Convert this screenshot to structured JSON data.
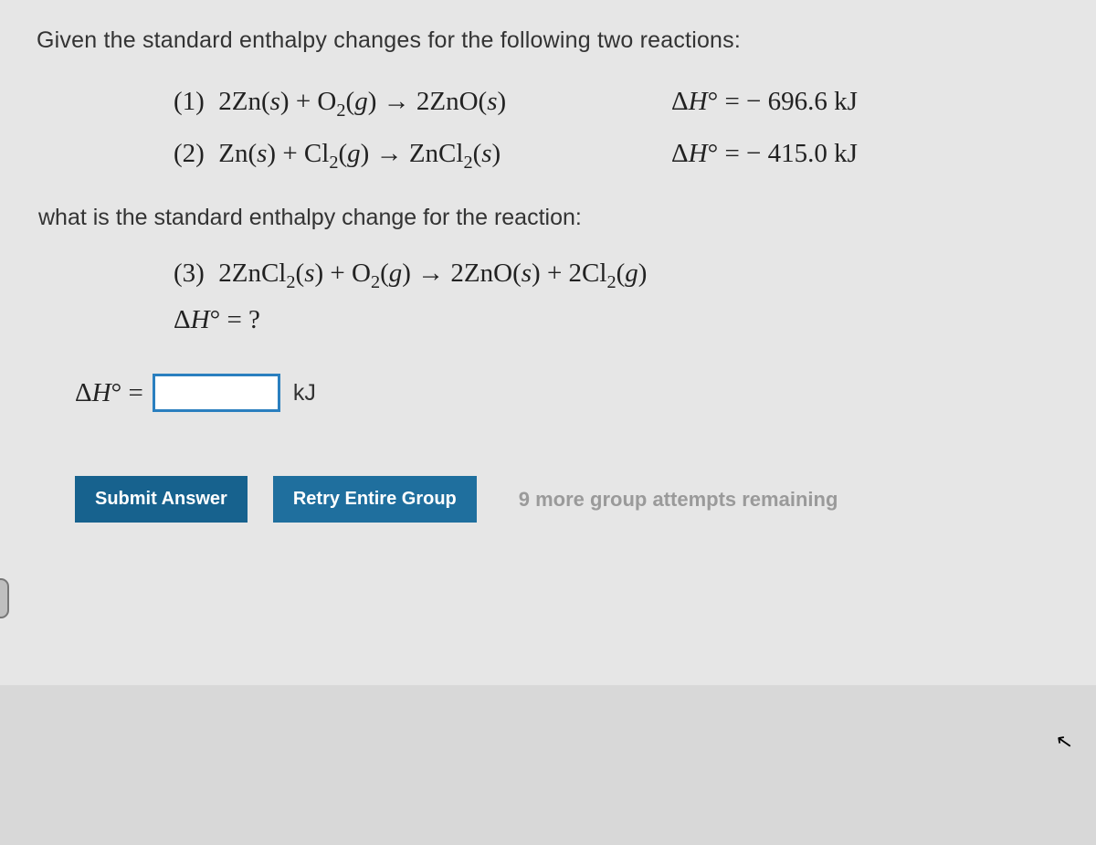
{
  "intro": "Given the standard enthalpy changes for the following two reactions:",
  "eq1": {
    "num": "(1)",
    "left": "2Zn(s) + O₂(g) → 2ZnO(s)",
    "right": "ΔH° = − 696.6 kJ"
  },
  "eq2": {
    "num": "(2)",
    "left": "Zn(s) + Cl₂(g) → ZnCl₂(s)",
    "right": "ΔH° = − 415.0 kJ"
  },
  "mid": "what is the standard enthalpy change for the reaction:",
  "eq3": {
    "num": "(3)",
    "body": "2ZnCl₂(s) + O₂(g) → 2ZnO(s) + 2Cl₂(g)",
    "ask": "ΔH° = ?"
  },
  "answer": {
    "label": "ΔH° =",
    "value": "",
    "placeholder": "",
    "unit": "kJ"
  },
  "buttons": {
    "submit": "Submit Answer",
    "retry": "Retry Entire Group"
  },
  "attempts": "9 more group attempts remaining",
  "colors": {
    "button_bg": "#17628e",
    "input_border": "#2a7fbf",
    "page_bg": "#e6e6e6",
    "attempts_text": "#9a9a9a"
  }
}
